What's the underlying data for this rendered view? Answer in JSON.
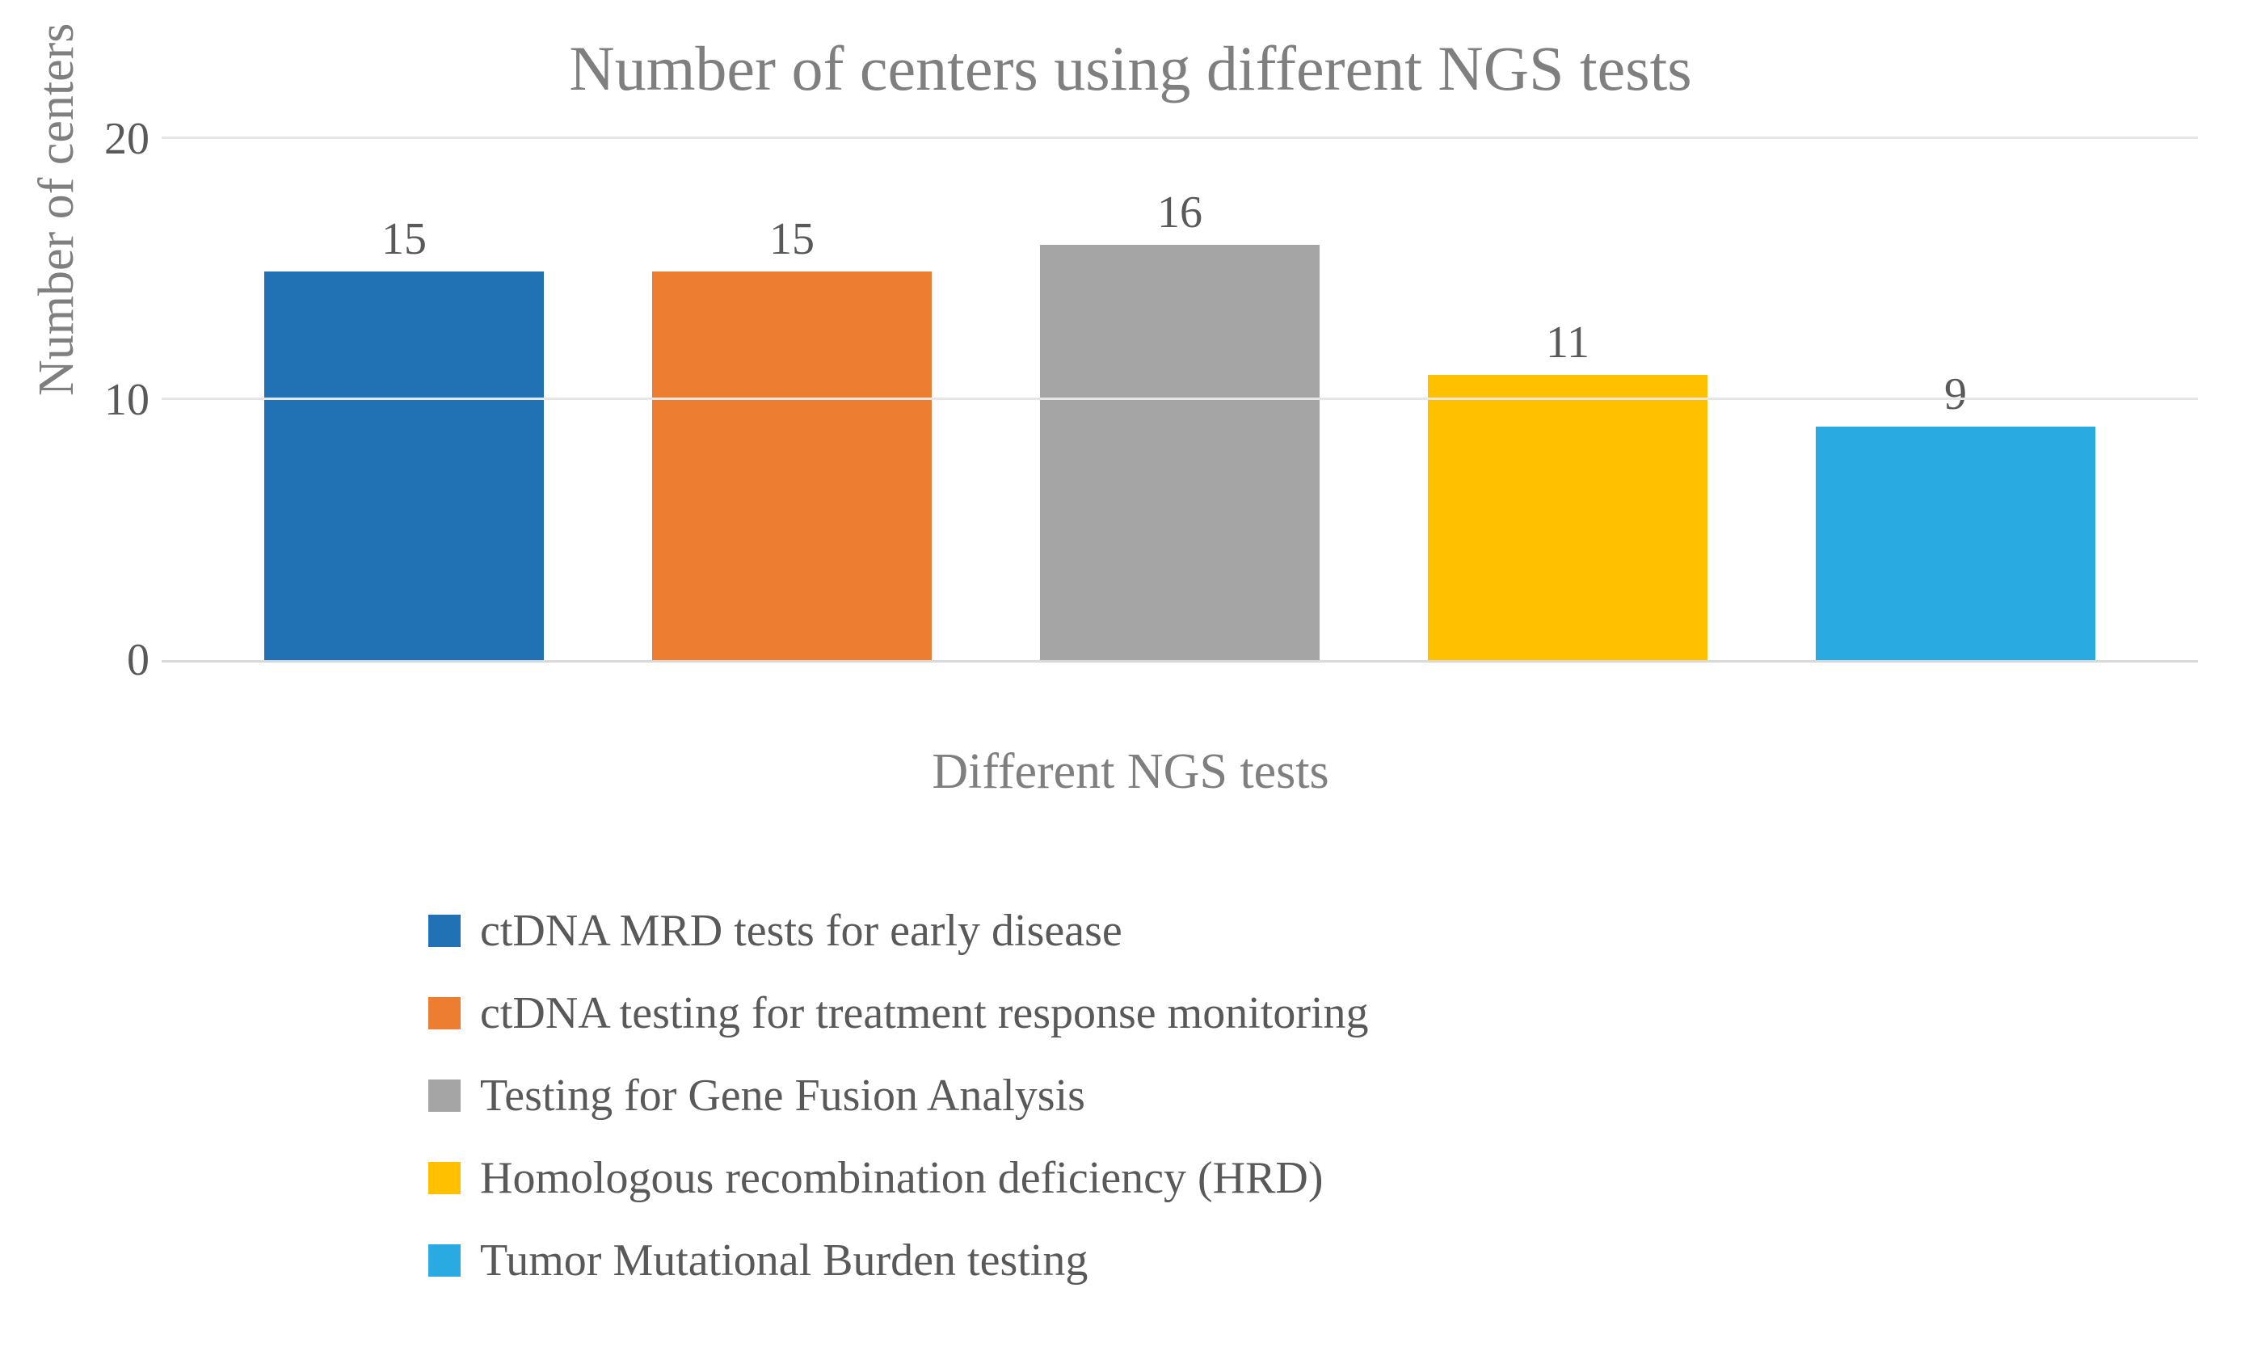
{
  "chart": {
    "type": "bar",
    "title": "Number of centers using different NGS tests",
    "title_fontsize": 78,
    "title_color": "#7f7f7f",
    "xlabel": "Different NGS tests",
    "ylabel": "Number of centers",
    "axis_label_fontsize": 62,
    "axis_label_color": "#7f7f7f",
    "tick_fontsize": 56,
    "tick_color": "#595959",
    "data_label_fontsize": 56,
    "data_label_color": "#595959",
    "legend_fontsize": 56,
    "legend_color": "#595959",
    "background_color": "#ffffff",
    "grid_color": "#e6e6e6",
    "axis_line_color": "#d9d9d9",
    "ylim": [
      0,
      20
    ],
    "ytick_step": 10,
    "yticks": [
      0,
      10,
      20
    ],
    "bar_width": 0.72,
    "series": [
      {
        "label": "ctDNA MRD tests for early disease",
        "value": 15,
        "color": "#2171b5"
      },
      {
        "label": "ctDNA testing for treatment response monitoring",
        "value": 15,
        "color": "#ed7d31"
      },
      {
        "label": "Testing for Gene Fusion Analysis",
        "value": 16,
        "color": "#a5a5a5"
      },
      {
        "label": "Homologous recombination deficiency (HRD)",
        "value": 11,
        "color": "#ffc000"
      },
      {
        "label": "Tumor Mutational Burden testing",
        "value": 9,
        "color": "#29abe2"
      }
    ]
  }
}
